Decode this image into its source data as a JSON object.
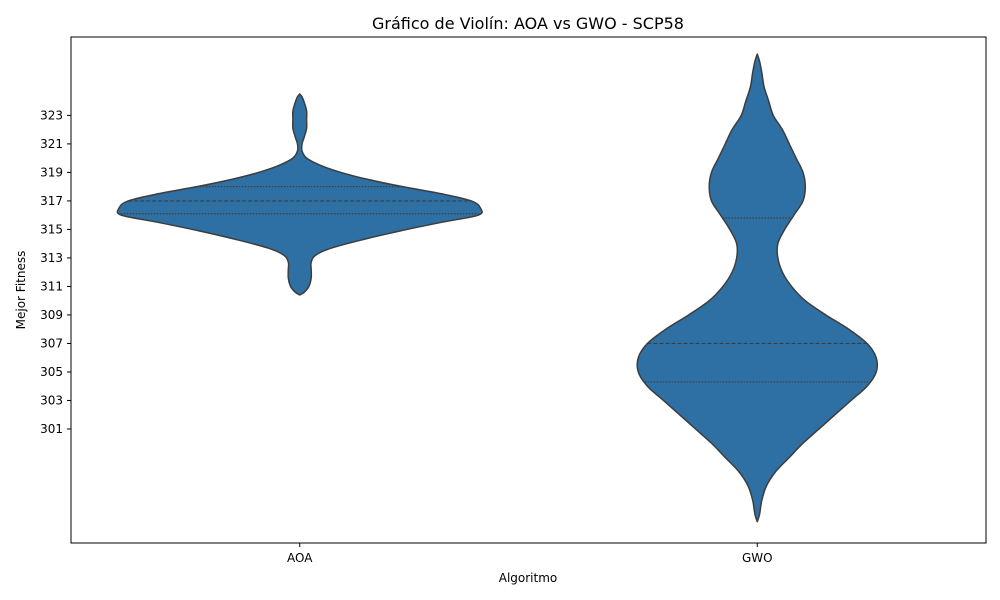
{
  "chart_data": {
    "type": "violin",
    "title": "Gráfico de Violín: AOA vs GWO - SCP58",
    "xlabel": "Algoritmo",
    "ylabel": "Mejor Fitness",
    "categories": [
      "AOA",
      "GWO"
    ],
    "ylim": [
      293.0,
      328.5
    ],
    "yticks": [
      301,
      303,
      305,
      307,
      309,
      311,
      313,
      315,
      317,
      319,
      321,
      323
    ],
    "grid": false,
    "violin_color": "#2e70a3",
    "edge_color": "#3d3d3d",
    "violins": [
      {
        "name": "AOA",
        "quartiles": [
          316.1,
          317.0,
          318.0
        ],
        "density_profile": [
          {
            "y": 310.4,
            "width": 0.0
          },
          {
            "y": 310.6,
            "width": 0.02
          },
          {
            "y": 311.0,
            "width": 0.04
          },
          {
            "y": 311.6,
            "width": 0.05
          },
          {
            "y": 312.2,
            "width": 0.05
          },
          {
            "y": 312.7,
            "width": 0.05
          },
          {
            "y": 313.2,
            "width": 0.07
          },
          {
            "y": 313.7,
            "width": 0.14
          },
          {
            "y": 314.3,
            "width": 0.28
          },
          {
            "y": 314.9,
            "width": 0.44
          },
          {
            "y": 315.5,
            "width": 0.62
          },
          {
            "y": 316.0,
            "width": 0.78
          },
          {
            "y": 316.5,
            "width": 0.79
          },
          {
            "y": 317.0,
            "width": 0.75
          },
          {
            "y": 317.5,
            "width": 0.62
          },
          {
            "y": 318.0,
            "width": 0.45
          },
          {
            "y": 318.5,
            "width": 0.3
          },
          {
            "y": 319.0,
            "width": 0.18
          },
          {
            "y": 319.5,
            "width": 0.09
          },
          {
            "y": 320.0,
            "width": 0.03
          },
          {
            "y": 320.5,
            "width": 0.01
          },
          {
            "y": 321.0,
            "width": 0.01
          },
          {
            "y": 321.5,
            "width": 0.02
          },
          {
            "y": 322.1,
            "width": 0.03
          },
          {
            "y": 322.7,
            "width": 0.03
          },
          {
            "y": 323.3,
            "width": 0.03
          },
          {
            "y": 323.9,
            "width": 0.02
          },
          {
            "y": 324.3,
            "width": 0.01
          },
          {
            "y": 324.5,
            "width": 0.0
          }
        ]
      },
      {
        "name": "GWO",
        "quartiles": [
          304.3,
          307.0,
          315.8
        ],
        "density_profile": [
          {
            "y": 294.5,
            "width": 0.0
          },
          {
            "y": 295.0,
            "width": 0.01
          },
          {
            "y": 296.0,
            "width": 0.02
          },
          {
            "y": 297.0,
            "width": 0.04
          },
          {
            "y": 298.0,
            "width": 0.08
          },
          {
            "y": 299.0,
            "width": 0.14
          },
          {
            "y": 300.0,
            "width": 0.2
          },
          {
            "y": 301.0,
            "width": 0.27
          },
          {
            "y": 302.0,
            "width": 0.34
          },
          {
            "y": 303.0,
            "width": 0.41
          },
          {
            "y": 304.0,
            "width": 0.48
          },
          {
            "y": 305.0,
            "width": 0.52
          },
          {
            "y": 306.0,
            "width": 0.52
          },
          {
            "y": 307.0,
            "width": 0.48
          },
          {
            "y": 308.0,
            "width": 0.4
          },
          {
            "y": 309.0,
            "width": 0.3
          },
          {
            "y": 310.0,
            "width": 0.21
          },
          {
            "y": 311.0,
            "width": 0.15
          },
          {
            "y": 312.0,
            "width": 0.11
          },
          {
            "y": 313.0,
            "width": 0.09
          },
          {
            "y": 314.0,
            "width": 0.09
          },
          {
            "y": 315.0,
            "width": 0.12
          },
          {
            "y": 316.0,
            "width": 0.16
          },
          {
            "y": 317.0,
            "width": 0.2
          },
          {
            "y": 318.0,
            "width": 0.21
          },
          {
            "y": 319.0,
            "width": 0.2
          },
          {
            "y": 320.0,
            "width": 0.17
          },
          {
            "y": 321.0,
            "width": 0.14
          },
          {
            "y": 322.0,
            "width": 0.11
          },
          {
            "y": 323.0,
            "width": 0.07
          },
          {
            "y": 324.0,
            "width": 0.05
          },
          {
            "y": 325.0,
            "width": 0.03
          },
          {
            "y": 326.0,
            "width": 0.02
          },
          {
            "y": 326.8,
            "width": 0.01
          },
          {
            "y": 327.3,
            "width": 0.0
          }
        ]
      }
    ]
  }
}
